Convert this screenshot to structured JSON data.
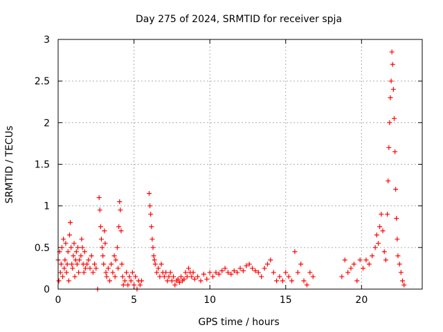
{
  "chart_data": {
    "type": "scatter",
    "title": "Day 275 of 2024, SRMTID for receiver spja",
    "xlabel": "GPS time / hours",
    "ylabel": "SRMTID / TECUs",
    "xlim": [
      0,
      24
    ],
    "ylim": [
      0,
      3
    ],
    "xticks": [
      "0",
      "5",
      "10",
      "15",
      "20"
    ],
    "xtick_values": [
      0,
      5,
      10,
      15,
      20
    ],
    "yticks": [
      "0",
      "0.5",
      "1",
      "1.5",
      "2",
      "2.5",
      "3"
    ],
    "ytick_values": [
      0,
      0.5,
      1,
      1.5,
      2,
      2.5,
      3
    ],
    "grid": true,
    "marker": "+",
    "series": [
      {
        "name": "SRMTID",
        "color": "#ff0000",
        "points": [
          [
            0.0,
            0.35
          ],
          [
            0.05,
            0.1
          ],
          [
            0.1,
            0.45
          ],
          [
            0.15,
            0.2
          ],
          [
            0.2,
            0.3
          ],
          [
            0.25,
            0.5
          ],
          [
            0.3,
            0.15
          ],
          [
            0.35,
            0.6
          ],
          [
            0.4,
            0.25
          ],
          [
            0.45,
            0.35
          ],
          [
            0.5,
            0.55
          ],
          [
            0.55,
            0.2
          ],
          [
            0.6,
            0.3
          ],
          [
            0.65,
            0.45
          ],
          [
            0.7,
            0.1
          ],
          [
            0.75,
            0.65
          ],
          [
            0.8,
            0.8
          ],
          [
            0.85,
            0.5
          ],
          [
            0.9,
            0.3
          ],
          [
            0.95,
            0.25
          ],
          [
            1.0,
            0.4
          ],
          [
            1.05,
            0.55
          ],
          [
            1.1,
            0.15
          ],
          [
            1.15,
            0.35
          ],
          [
            1.2,
            0.45
          ],
          [
            1.25,
            0.3
          ],
          [
            1.3,
            0.5
          ],
          [
            1.35,
            0.2
          ],
          [
            1.4,
            0.35
          ],
          [
            1.5,
            0.4
          ],
          [
            1.55,
            0.6
          ],
          [
            1.6,
            0.5
          ],
          [
            1.65,
            0.3
          ],
          [
            1.7,
            0.2
          ],
          [
            1.75,
            0.45
          ],
          [
            1.8,
            0.25
          ],
          [
            1.9,
            0.3
          ],
          [
            2.0,
            0.35
          ],
          [
            2.1,
            0.25
          ],
          [
            2.2,
            0.4
          ],
          [
            2.3,
            0.2
          ],
          [
            2.4,
            0.3
          ],
          [
            2.5,
            0.25
          ],
          [
            2.6,
            0.0
          ],
          [
            2.7,
            1.1
          ],
          [
            2.75,
            0.95
          ],
          [
            2.8,
            0.75
          ],
          [
            2.85,
            0.6
          ],
          [
            2.9,
            0.5
          ],
          [
            2.95,
            0.4
          ],
          [
            3.0,
            0.3
          ],
          [
            3.05,
            0.7
          ],
          [
            3.1,
            0.55
          ],
          [
            3.15,
            0.2
          ],
          [
            3.2,
            0.15
          ],
          [
            3.3,
            0.25
          ],
          [
            3.4,
            0.1
          ],
          [
            3.5,
            0.3
          ],
          [
            3.6,
            0.2
          ],
          [
            3.7,
            0.4
          ],
          [
            3.75,
            0.15
          ],
          [
            3.8,
            0.35
          ],
          [
            3.9,
            0.5
          ],
          [
            3.95,
            0.25
          ],
          [
            4.0,
            0.75
          ],
          [
            4.05,
            1.05
          ],
          [
            4.1,
            0.95
          ],
          [
            4.15,
            0.7
          ],
          [
            4.2,
            0.3
          ],
          [
            4.25,
            0.15
          ],
          [
            4.3,
            0.05
          ],
          [
            4.4,
            0.1
          ],
          [
            4.5,
            0.2
          ],
          [
            4.6,
            0.05
          ],
          [
            4.7,
            0.15
          ],
          [
            4.8,
            0.1
          ],
          [
            4.9,
            0.2
          ],
          [
            5.0,
            0.05
          ],
          [
            5.1,
            0.15
          ],
          [
            5.2,
            0.0
          ],
          [
            5.3,
            0.1
          ],
          [
            5.4,
            0.05
          ],
          [
            5.5,
            0.1
          ],
          [
            6.0,
            1.15
          ],
          [
            6.05,
            1.0
          ],
          [
            6.1,
            0.9
          ],
          [
            6.15,
            0.75
          ],
          [
            6.2,
            0.6
          ],
          [
            6.25,
            0.5
          ],
          [
            6.3,
            0.4
          ],
          [
            6.35,
            0.35
          ],
          [
            6.4,
            0.3
          ],
          [
            6.5,
            0.2
          ],
          [
            6.6,
            0.25
          ],
          [
            6.7,
            0.15
          ],
          [
            6.8,
            0.3
          ],
          [
            6.9,
            0.2
          ],
          [
            7.0,
            0.15
          ],
          [
            7.1,
            0.2
          ],
          [
            7.2,
            0.1
          ],
          [
            7.3,
            0.15
          ],
          [
            7.4,
            0.2
          ],
          [
            7.5,
            0.1
          ],
          [
            7.6,
            0.15
          ],
          [
            7.7,
            0.05
          ],
          [
            7.8,
            0.1
          ],
          [
            7.9,
            0.12
          ],
          [
            8.0,
            0.08
          ],
          [
            8.1,
            0.15
          ],
          [
            8.2,
            0.1
          ],
          [
            8.3,
            0.12
          ],
          [
            8.4,
            0.2
          ],
          [
            8.5,
            0.15
          ],
          [
            8.6,
            0.25
          ],
          [
            8.7,
            0.2
          ],
          [
            8.8,
            0.15
          ],
          [
            8.9,
            0.2
          ],
          [
            9.0,
            0.12
          ],
          [
            9.2,
            0.15
          ],
          [
            9.4,
            0.1
          ],
          [
            9.6,
            0.18
          ],
          [
            9.8,
            0.12
          ],
          [
            10.0,
            0.2
          ],
          [
            10.2,
            0.15
          ],
          [
            10.4,
            0.2
          ],
          [
            10.6,
            0.18
          ],
          [
            10.8,
            0.22
          ],
          [
            11.0,
            0.25
          ],
          [
            11.2,
            0.2
          ],
          [
            11.4,
            0.18
          ],
          [
            11.6,
            0.22
          ],
          [
            11.8,
            0.2
          ],
          [
            12.0,
            0.25
          ],
          [
            12.2,
            0.22
          ],
          [
            12.4,
            0.28
          ],
          [
            12.6,
            0.3
          ],
          [
            12.8,
            0.25
          ],
          [
            13.0,
            0.22
          ],
          [
            13.2,
            0.2
          ],
          [
            13.4,
            0.15
          ],
          [
            13.6,
            0.25
          ],
          [
            13.8,
            0.3
          ],
          [
            14.0,
            0.35
          ],
          [
            14.2,
            0.2
          ],
          [
            14.4,
            0.1
          ],
          [
            14.6,
            0.15
          ],
          [
            14.8,
            0.1
          ],
          [
            15.0,
            0.2
          ],
          [
            15.2,
            0.15
          ],
          [
            15.4,
            0.1
          ],
          [
            15.6,
            0.45
          ],
          [
            15.8,
            0.2
          ],
          [
            16.0,
            0.3
          ],
          [
            16.2,
            0.1
          ],
          [
            16.4,
            0.05
          ],
          [
            16.6,
            0.2
          ],
          [
            16.8,
            0.15
          ],
          [
            18.7,
            0.15
          ],
          [
            18.9,
            0.35
          ],
          [
            19.1,
            0.2
          ],
          [
            19.3,
            0.25
          ],
          [
            19.5,
            0.3
          ],
          [
            19.7,
            0.1
          ],
          [
            19.9,
            0.35
          ],
          [
            20.1,
            0.25
          ],
          [
            20.3,
            0.35
          ],
          [
            20.5,
            0.3
          ],
          [
            20.7,
            0.4
          ],
          [
            20.9,
            0.5
          ],
          [
            21.0,
            0.65
          ],
          [
            21.1,
            0.55
          ],
          [
            21.2,
            0.75
          ],
          [
            21.3,
            0.9
          ],
          [
            21.4,
            0.7
          ],
          [
            21.5,
            0.45
          ],
          [
            21.6,
            0.35
          ],
          [
            21.7,
            0.9
          ],
          [
            21.75,
            1.3
          ],
          [
            21.8,
            1.7
          ],
          [
            21.85,
            2.0
          ],
          [
            21.9,
            2.3
          ],
          [
            21.95,
            2.5
          ],
          [
            22.0,
            2.85
          ],
          [
            22.05,
            2.7
          ],
          [
            22.1,
            2.4
          ],
          [
            22.15,
            2.05
          ],
          [
            22.2,
            1.65
          ],
          [
            22.25,
            1.2
          ],
          [
            22.3,
            0.85
          ],
          [
            22.35,
            0.6
          ],
          [
            22.4,
            0.4
          ],
          [
            22.5,
            0.3
          ],
          [
            22.6,
            0.2
          ],
          [
            22.7,
            0.1
          ],
          [
            22.8,
            0.05
          ]
        ]
      }
    ]
  }
}
